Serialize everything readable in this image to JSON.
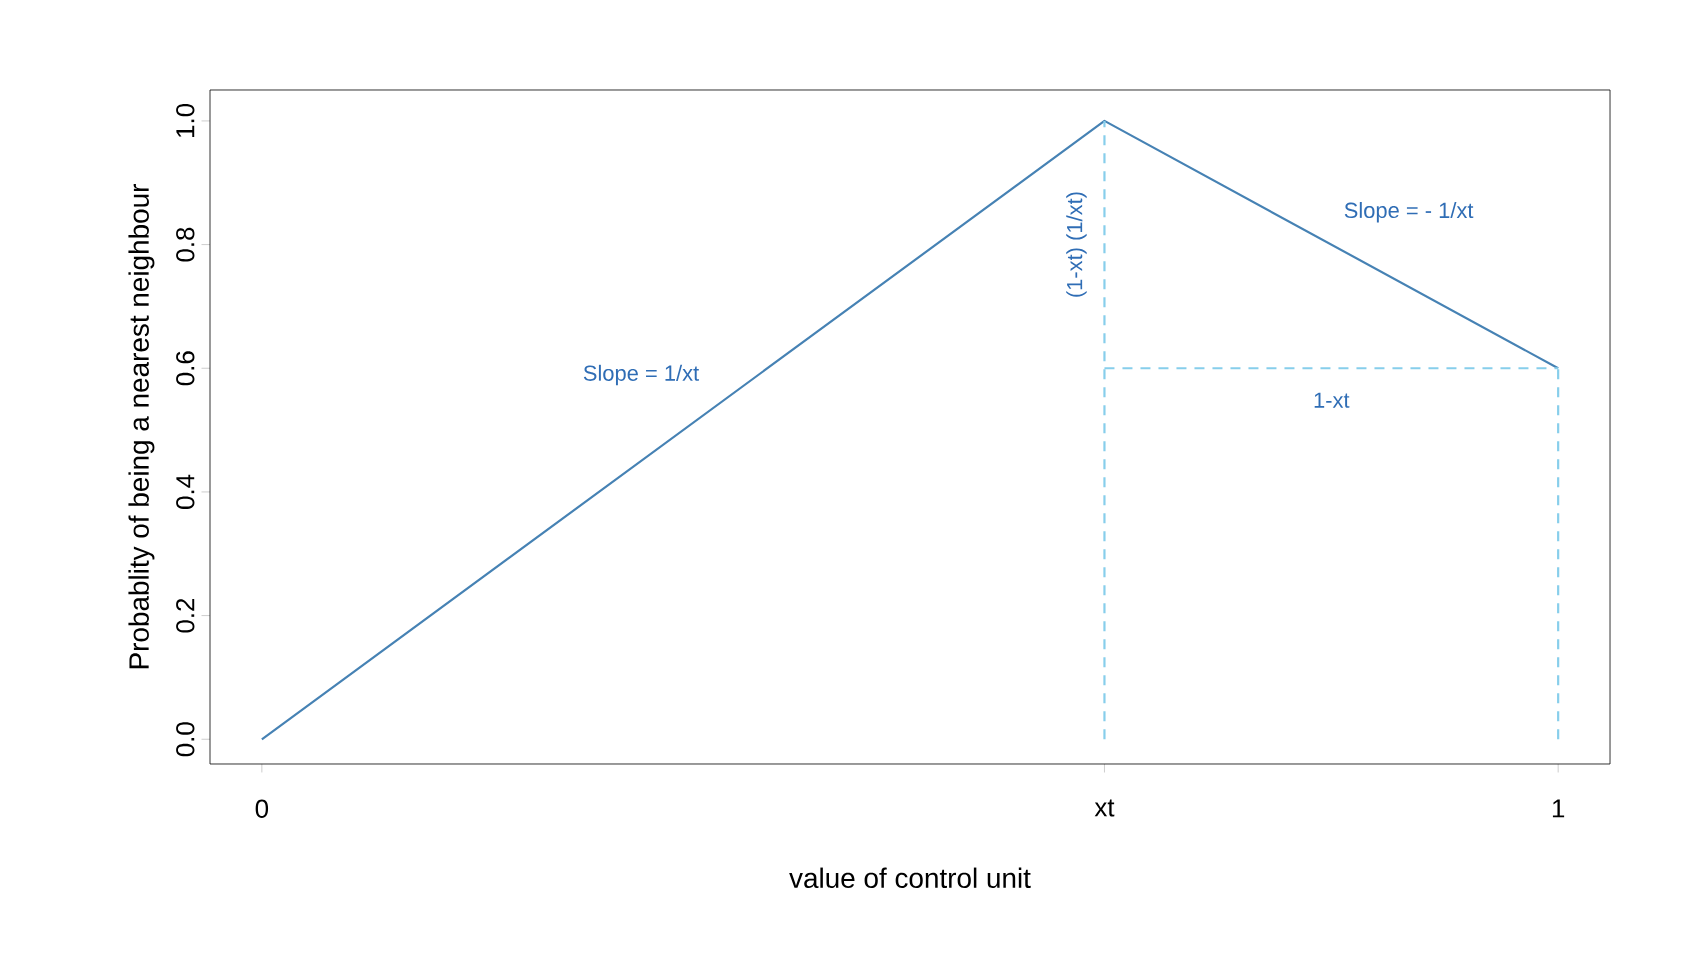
{
  "chart_data": {
    "type": "line",
    "xlabel": "value of control unit",
    "ylabel": "Probablity of being a nearest neighbour",
    "xlim": [
      -0.04,
      1.04
    ],
    "ylim": [
      -0.04,
      1.05
    ],
    "xticks": [
      0,
      {
        "value": 0.65,
        "label": "xt"
      },
      1
    ],
    "yticks": [
      {
        "value": 0,
        "label": "0.0"
      },
      {
        "value": 0.2,
        "label": "0.2"
      },
      {
        "value": 0.4,
        "label": "0.4"
      },
      {
        "value": 0.6,
        "label": "0.6"
      },
      {
        "value": 0.8,
        "label": "0.8"
      },
      {
        "value": 1,
        "label": "1.0"
      }
    ],
    "series": [
      {
        "color": "#4682b4",
        "x": [
          0,
          0.65,
          1
        ],
        "values": [
          0,
          1,
          0.6
        ],
        "line_style": "solid"
      },
      {
        "color": "#87ceeb",
        "x": [
          0.65,
          0.65
        ],
        "values": [
          0,
          1
        ],
        "line_style": "dashed"
      },
      {
        "color": "#87ceeb",
        "x": [
          0.65,
          1
        ],
        "values": [
          0.6,
          0.6
        ],
        "line_style": "dashed"
      },
      {
        "color": "#87ceeb",
        "x": [
          1,
          1
        ],
        "values": [
          0,
          0.6
        ],
        "line_style": "dashed"
      }
    ],
    "annotations": [
      "Slope = 1/xt",
      "Slope = - 1/xt",
      "1-xt",
      "(1-xt) (1/xt)"
    ],
    "marker": "none"
  }
}
